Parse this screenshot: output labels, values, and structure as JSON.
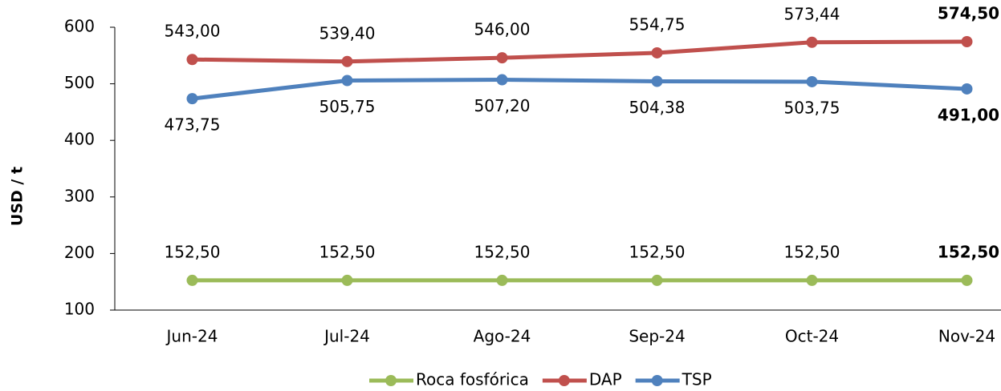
{
  "chart_data": {
    "type": "line",
    "y_label": "USD / t",
    "categories": [
      "Jun-24",
      "Jul-24",
      "Ago-24",
      "Sep-24",
      "Oct-24",
      "Nov-24"
    ],
    "ylim": [
      100,
      600
    ],
    "yticks": [
      100,
      200,
      300,
      400,
      500,
      600
    ],
    "grid": false,
    "legend": "bottom",
    "series": [
      {
        "name": "Roca fosfórica",
        "color": "#9bbb59",
        "values": [
          152.5,
          152.5,
          152.5,
          152.5,
          152.5,
          152.5
        ],
        "value_labels": [
          "152,50",
          "152,50",
          "152,50",
          "152,50",
          "152,50",
          "152,50"
        ]
      },
      {
        "name": "DAP",
        "color": "#c0504d",
        "values": [
          543,
          539.4,
          546,
          554.75,
          573.44,
          574.5
        ],
        "value_labels": [
          "543,00",
          "539,40",
          "546,00",
          "554,75",
          "573,44",
          "574,50"
        ]
      },
      {
        "name": "TSP",
        "color": "#4f81bd",
        "values": [
          473.75,
          505.75,
          507.2,
          504.38,
          503.75,
          491
        ],
        "value_labels": [
          "473,75",
          "505,75",
          "507,20",
          "504,38",
          "503,75",
          "491,00"
        ]
      }
    ]
  }
}
